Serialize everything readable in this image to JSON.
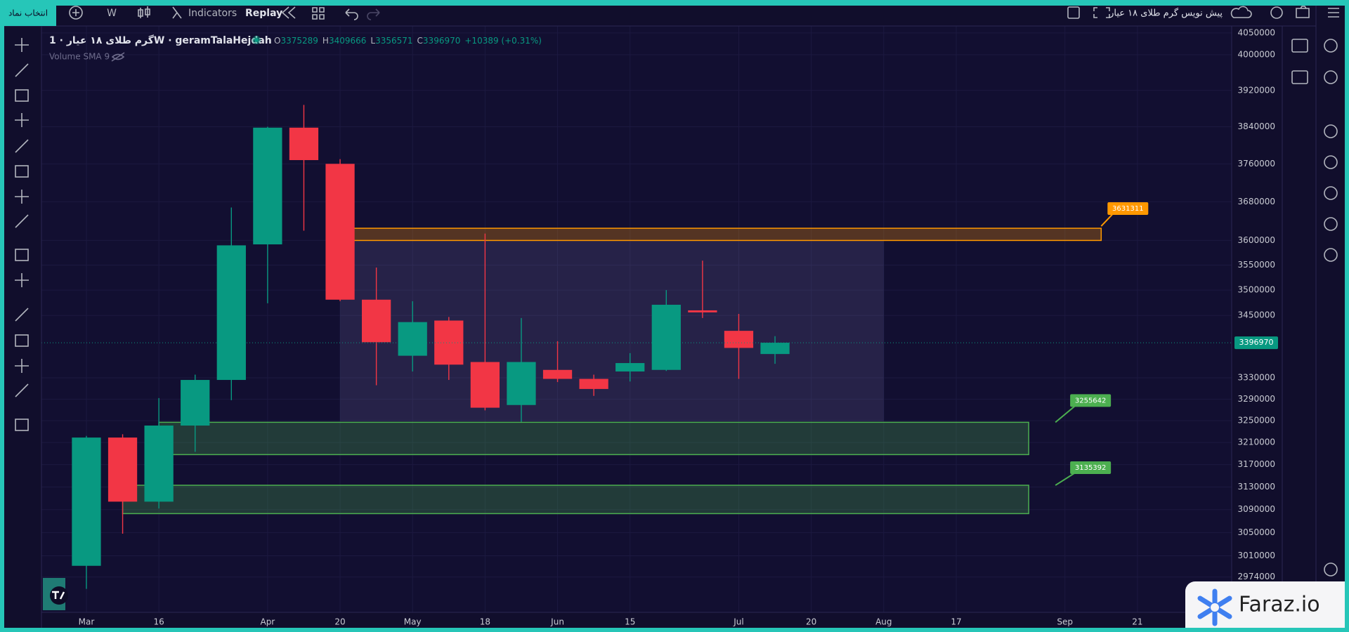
{
  "top_bar": {
    "symbol_search": "انتخاب نماد",
    "interval": "W",
    "indicators": "Indicators",
    "replay": "Replay",
    "layout_name": "پیش نویس گرم طلای ۱۸ عیار"
  },
  "legend": {
    "title": "گرم طلای ۱۸ عیار · 1W · geramTalaHejdah",
    "open_label": "O",
    "open": 3375289,
    "high_label": "H",
    "high": 3409666,
    "low_label": "L",
    "low": 3356571,
    "close_label": "C",
    "close": 3396970,
    "change": "+10389 (+0.31%)",
    "indicator": "Volume SMA 9"
  },
  "chart_data": {
    "type": "candlestick",
    "x": [
      0,
      1,
      2,
      3,
      4,
      5,
      6,
      7,
      8,
      9,
      10,
      11,
      12,
      13,
      14,
      15,
      16,
      17,
      18,
      19
    ],
    "open": [
      2993000,
      3219000,
      3104000,
      3241000,
      3326000,
      3592000,
      3838000,
      3760000,
      3481000,
      3372000,
      3440000,
      3360000,
      3279000,
      3345000,
      3328000,
      3342000,
      3345000,
      3460000,
      3420000,
      3375289
    ],
    "high": [
      3222000,
      3225000,
      3292000,
      3336000,
      3668000,
      3840000,
      3888000,
      3770000,
      3545000,
      3478000,
      3447000,
      3614000,
      3445000,
      3400000,
      3336000,
      3377000,
      3500000,
      3559000,
      3453000,
      3409666
    ],
    "low": [
      2954000,
      3048000,
      3092000,
      3193000,
      3288000,
      3474000,
      3620000,
      3478000,
      3316000,
      3342000,
      3326000,
      3269000,
      3248000,
      3322000,
      3296000,
      3323000,
      3343000,
      3445000,
      3328000,
      3356571
    ],
    "close": [
      3219000,
      3104000,
      3241000,
      3326000,
      3590000,
      3838000,
      3768000,
      3481000,
      3398000,
      3437000,
      3355000,
      3274000,
      3360000,
      3328000,
      3309000,
      3358000,
      3471000,
      3456000,
      3387000,
      3396970
    ],
    "up_color": "#089981",
    "down_color": "#f23645",
    "xlim": [
      -1.24,
      31.6
    ],
    "xticks": [
      {
        "value": 0,
        "label": "Mar"
      },
      {
        "value": 2,
        "label": "16"
      },
      {
        "value": 5,
        "label": "Apr"
      },
      {
        "value": 7,
        "label": "20"
      },
      {
        "value": 9,
        "label": "May"
      },
      {
        "value": 11,
        "label": "18"
      },
      {
        "value": 13,
        "label": "Jun"
      },
      {
        "value": 15,
        "label": "15"
      },
      {
        "value": 18,
        "label": "Jul"
      },
      {
        "value": 20,
        "label": "20"
      },
      {
        "value": 22,
        "label": "Aug"
      },
      {
        "value": 24,
        "label": "17"
      },
      {
        "value": 27,
        "label": "Sep"
      },
      {
        "value": 29,
        "label": "21"
      }
    ],
    "ylim": [
      2915000,
      4066000
    ],
    "log_scale": true,
    "grid": true,
    "yticks": [
      4050000,
      4000000,
      3920000,
      3840000,
      3760000,
      3680000,
      3600000,
      3550000,
      3500000,
      3450000,
      3330000,
      3290000,
      3250000,
      3210000,
      3170000,
      3130000,
      3090000,
      3050000,
      3010000,
      2974000
    ],
    "last_price": 3396970,
    "range_box": {
      "x": [
        7,
        22
      ],
      "range": [
        3249000,
        3600000
      ]
    },
    "zones": [
      {
        "x": [
          7.3,
          28
        ],
        "range": [
          3600000,
          3625000
        ],
        "label": 3631311,
        "color": "#ff9800"
      },
      {
        "x": [
          2,
          26
        ],
        "range": [
          3188000,
          3247000
        ],
        "label": 3255642,
        "color": "#4caf50"
      },
      {
        "x": [
          1,
          26
        ],
        "range": [
          3083000,
          3133000
        ],
        "label": 3135392,
        "color": "#4caf50"
      }
    ]
  },
  "watermark": "Faraz.io"
}
